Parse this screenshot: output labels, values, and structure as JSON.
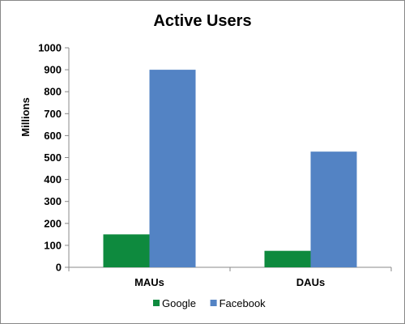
{
  "chart_data": {
    "type": "bar",
    "title": "Active Users",
    "xlabel": "",
    "ylabel": "Millions",
    "ylim": [
      0,
      1000
    ],
    "yticks": [
      0,
      100,
      200,
      300,
      400,
      500,
      600,
      700,
      800,
      900,
      1000
    ],
    "grid": false,
    "legend_position": "bottom",
    "categories": [
      "MAUs",
      "DAUs"
    ],
    "series": [
      {
        "name": "Google",
        "color": "#0e8a3e",
        "values": [
          150,
          75
        ]
      },
      {
        "name": "Facebook",
        "color": "#5383c4",
        "values": [
          900,
          527
        ]
      }
    ]
  }
}
